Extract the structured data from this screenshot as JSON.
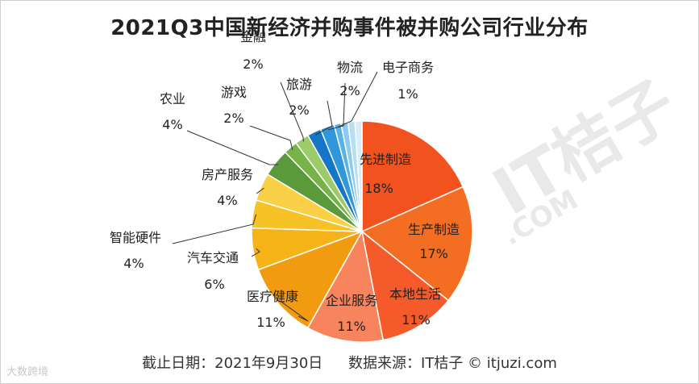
{
  "title": "2021Q3中国新经济并购事件被并购公司行业分布",
  "footer": {
    "date_label": "截止日期：2021年9月30日",
    "source_label": "数据来源：IT桔子 © itjuzi.com"
  },
  "watermark": {
    "brand": "IT桔子",
    "domain": ".COM"
  },
  "corner_logo": "大数跨境",
  "chart_data": {
    "type": "pie",
    "title": "2021Q3中国新经济并购事件被并购公司行业分布",
    "start_angle_deg": 0,
    "direction": "clockwise",
    "slices": [
      {
        "label": "先进制造",
        "value": 18,
        "display": "18%",
        "color": "#F2521E"
      },
      {
        "label": "生产制造",
        "value": 17,
        "display": "17%",
        "color": "#F36E22"
      },
      {
        "label": "本地生活",
        "value": 11,
        "display": "11%",
        "color": "#F55A2A"
      },
      {
        "label": "企业服务",
        "value": 11,
        "display": "11%",
        "color": "#F8845E"
      },
      {
        "label": "医疗健康",
        "value": 11,
        "display": "11%",
        "color": "#F39B10"
      },
      {
        "label": "汽车交通",
        "value": 6,
        "display": "6%",
        "color": "#F6B317"
      },
      {
        "label": "智能硬件",
        "value": 4,
        "display": "4%",
        "color": "#F7C226"
      },
      {
        "label": "房产服务",
        "value": 4,
        "display": "4%",
        "color": "#F9D047"
      },
      {
        "label": "农业",
        "value": 4,
        "display": "4%",
        "color": "#5B9A3A"
      },
      {
        "label": "游戏",
        "value": 2,
        "display": "2%",
        "color": "#76B349"
      },
      {
        "label": "旅游",
        "value": 2,
        "display": "2%",
        "color": "#9CCB6A"
      },
      {
        "label": "金融",
        "value": 2,
        "display": "2%",
        "color": "#1576C8"
      },
      {
        "label": "物流",
        "value": 2,
        "display": "2%",
        "color": "#2F97DA"
      },
      {
        "label": "电子商务",
        "value": 1,
        "display": "1%",
        "color": "#58B2E6"
      },
      {
        "label": "",
        "value": 1,
        "display": "",
        "color": "#8CCBEF"
      },
      {
        "label": "",
        "value": 1,
        "display": "",
        "color": "#B6DFF5"
      },
      {
        "label": "",
        "value": 1,
        "display": "",
        "color": "#D7EEF9"
      }
    ]
  }
}
